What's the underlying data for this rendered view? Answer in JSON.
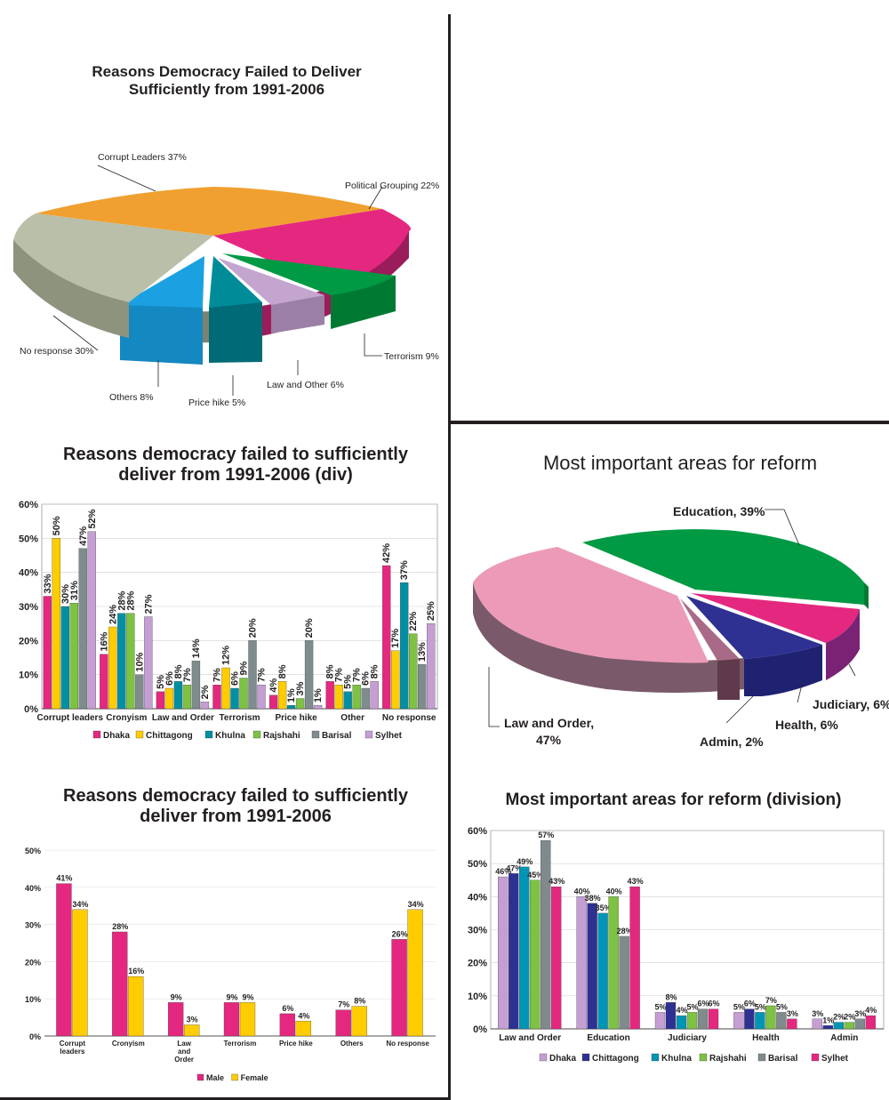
{
  "colors": {
    "border": "#231f20",
    "dhaka": "#e4287f",
    "chittagong": "#ffcc00",
    "khulna": "#008fa3",
    "rajshahi": "#7dc242",
    "barisal": "#7f8c8d",
    "sylhet": "#c59ed4",
    "reform_dhaka": "#c59ed4",
    "reform_chittagong": "#2e3192",
    "reform_khulna": "#0095b6",
    "reform_rajshahi": "#7dc242",
    "reform_barisal": "#808a8c",
    "reform_sylhet": "#e4287f",
    "male": "#e4287f",
    "female": "#ffcc00"
  },
  "chart_data": [
    {
      "id": "pie_reasons",
      "type": "pie",
      "title_line1": "Reasons Democracy Failed to Deliver",
      "title_line2": "Sufficiently from 1991-2006",
      "slices": [
        {
          "label": "Corrupt Leaders 37%",
          "value": 37,
          "color": "#f0a030"
        },
        {
          "label": "Political Grouping 22%",
          "value": 22,
          "color": "#e4287f"
        },
        {
          "label": "Terrorism 9%",
          "value": 9,
          "color": "#009a44"
        },
        {
          "label": "Law and Other 6%",
          "value": 6,
          "color": "#c4a5cf"
        },
        {
          "label": "Price hike 5%",
          "value": 5,
          "color": "#008b99"
        },
        {
          "label": "Others 8%",
          "value": 8,
          "color": "#1ba1e2"
        },
        {
          "label": "No response 30%",
          "value": 30,
          "color": "#b9bfa8"
        }
      ]
    },
    {
      "id": "bar_div",
      "type": "bar",
      "title_line1": "Reasons democracy failed to sufficiently",
      "title_line2": "deliver from 1991-2006 (div)",
      "categories": [
        "Corrupt leaders",
        "Cronyism",
        "Law and Order",
        "Terrorism",
        "Price hike",
        "Other",
        "No response"
      ],
      "series": [
        {
          "name": "Dhaka",
          "values": [
            33,
            16,
            5,
            7,
            4,
            8,
            42
          ]
        },
        {
          "name": "Chittagong",
          "values": [
            50,
            24,
            6,
            12,
            8,
            7,
            17
          ]
        },
        {
          "name": "Khulna",
          "values": [
            30,
            28,
            8,
            6,
            1,
            5,
            37
          ]
        },
        {
          "name": "Rajshahi",
          "values": [
            31,
            28,
            7,
            9,
            3,
            7,
            22
          ]
        },
        {
          "name": "Barisal",
          "values": [
            47,
            10,
            14,
            20,
            20,
            6,
            13
          ]
        },
        {
          "name": "Sylhet",
          "values": [
            52,
            27,
            2,
            7,
            1,
            8,
            25
          ]
        }
      ],
      "ylim": [
        0,
        60
      ],
      "yticks": [
        "0%",
        "10%",
        "20%",
        "30%",
        "40%",
        "50%",
        "60%"
      ]
    },
    {
      "id": "bar_gender",
      "type": "bar",
      "title_line1": "Reasons democracy failed to sufficiently",
      "title_line2": "deliver from 1991-2006",
      "categories": [
        "Corrupt leaders",
        "Cronyism",
        "Law and Order",
        "Terrorism",
        "Price hike",
        "Others",
        "No response"
      ],
      "series": [
        {
          "name": "Male",
          "values": [
            41,
            28,
            9,
            9,
            6,
            7,
            26
          ]
        },
        {
          "name": "Female",
          "values": [
            34,
            16,
            3,
            9,
            4,
            8,
            34
          ]
        }
      ],
      "ylim": [
        0,
        50
      ],
      "yticks": [
        "0%",
        "10%",
        "20%",
        "30%",
        "40%",
        "50%"
      ]
    },
    {
      "id": "pie_reform",
      "type": "pie",
      "title": "Most important areas for reform",
      "slices": [
        {
          "label": "Education, 39%",
          "value": 39,
          "color": "#009a44"
        },
        {
          "label": "Judiciary, 6%",
          "value": 6,
          "color": "#e4287f"
        },
        {
          "label": "Health, 6%",
          "value": 6,
          "color": "#2e3192"
        },
        {
          "label": "Admin, 2%",
          "value": 2,
          "color": "#8b5a6a"
        },
        {
          "label_line1": "Law and Order,",
          "label_line2": "47%",
          "value": 47,
          "color": "#ec9ab8"
        }
      ]
    },
    {
      "id": "bar_reform_div",
      "type": "bar",
      "title": "Most important areas for reform (division)",
      "categories": [
        "Law and Order",
        "Education",
        "Judiciary",
        "Health",
        "Admin"
      ],
      "series": [
        {
          "name": "Dhaka",
          "values": [
            46,
            40,
            5,
            5,
            3
          ]
        },
        {
          "name": "Chittagong",
          "values": [
            47,
            38,
            8,
            6,
            1
          ]
        },
        {
          "name": "Khulna",
          "values": [
            49,
            35,
            4,
            5,
            2
          ]
        },
        {
          "name": "Rajshahi",
          "values": [
            45,
            40,
            5,
            7,
            2
          ]
        },
        {
          "name": "Barisal",
          "values": [
            57,
            28,
            6,
            5,
            3
          ]
        },
        {
          "name": "Sylhet",
          "values": [
            43,
            43,
            6,
            3,
            4
          ]
        }
      ],
      "ylim": [
        0,
        60
      ],
      "yticks": [
        "0%",
        "10%",
        "20%",
        "30%",
        "40%",
        "50%",
        "60%"
      ]
    }
  ]
}
